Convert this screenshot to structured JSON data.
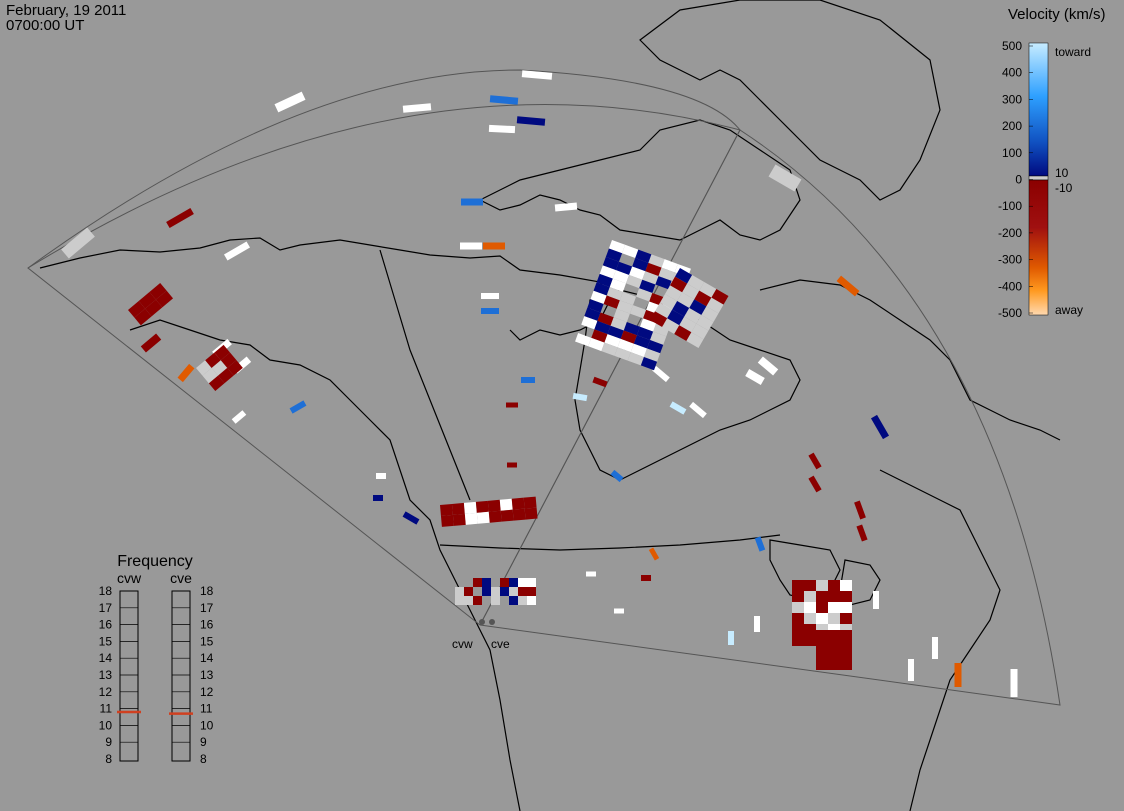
{
  "header": {
    "date": "February, 19 2011",
    "time": "0700:00 UT"
  },
  "colorbar": {
    "title": "Velocity (km/s)",
    "tick_labels": [
      "500",
      "400",
      "300",
      "200",
      "100",
      "0",
      "-100",
      "-200",
      "-300",
      "-400",
      "-500"
    ],
    "end_labels": {
      "top": "toward",
      "bottom": "away"
    },
    "threshold_labels": [
      "10",
      "-10"
    ],
    "colors": {
      "toward_light": "#c7ecff",
      "toward_mid": "#1e6fd6",
      "toward_dark": "#000a80",
      "away_dark": "#8b0000",
      "away_mid": "#e05a00",
      "away_light": "#ffd9b0",
      "ground_scatter": "#cccccc"
    }
  },
  "frequency_panel": {
    "title": "Frequency",
    "radars": [
      {
        "name": "cvw",
        "frequency_mhz": 10.8
      },
      {
        "name": "cve",
        "frequency_mhz": 10.7
      }
    ],
    "scale": [
      "18",
      "17",
      "16",
      "15",
      "14",
      "13",
      "12",
      "11",
      "10",
      "9",
      "8"
    ],
    "marker_color": "#d04020"
  },
  "radars": [
    {
      "name": "cvw"
    },
    {
      "name": "cve"
    }
  ],
  "map": {
    "background": "#999999",
    "coastline_color": "#000000",
    "fov_line_color": "#555555",
    "vector_count_description": "line-of-sight velocity cells"
  }
}
